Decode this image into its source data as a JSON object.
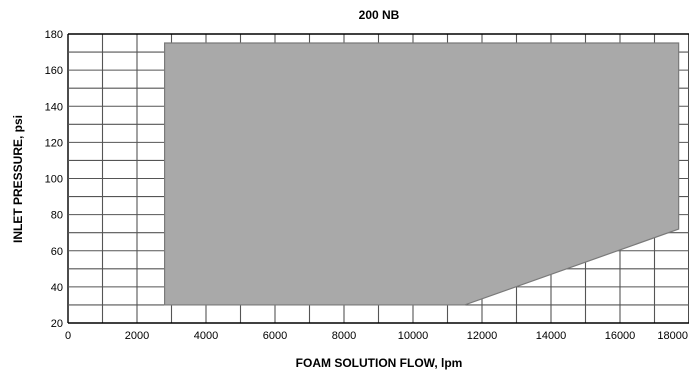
{
  "chart_data": {
    "type": "area",
    "title": "200 NB",
    "xlabel": "FOAM SOLUTION FLOW, lpm",
    "ylabel": "INLET PRESSURE, psi",
    "xlim": [
      0,
      18000
    ],
    "ylim": [
      20,
      180
    ],
    "x_ticks": [
      0,
      2000,
      4000,
      6000,
      8000,
      10000,
      12000,
      14000,
      16000,
      18000
    ],
    "y_ticks": [
      20,
      40,
      60,
      80,
      100,
      120,
      140,
      160,
      180
    ],
    "x_grid_step": 1000,
    "y_grid_step": 10,
    "grid": true,
    "fill_color": "#a9a9a9",
    "region": {
      "name": "",
      "points": [
        {
          "x": 2800,
          "y": 30
        },
        {
          "x": 2800,
          "y": 175
        },
        {
          "x": 17700,
          "y": 175
        },
        {
          "x": 17700,
          "y": 72
        },
        {
          "x": 11500,
          "y": 30
        }
      ]
    }
  }
}
